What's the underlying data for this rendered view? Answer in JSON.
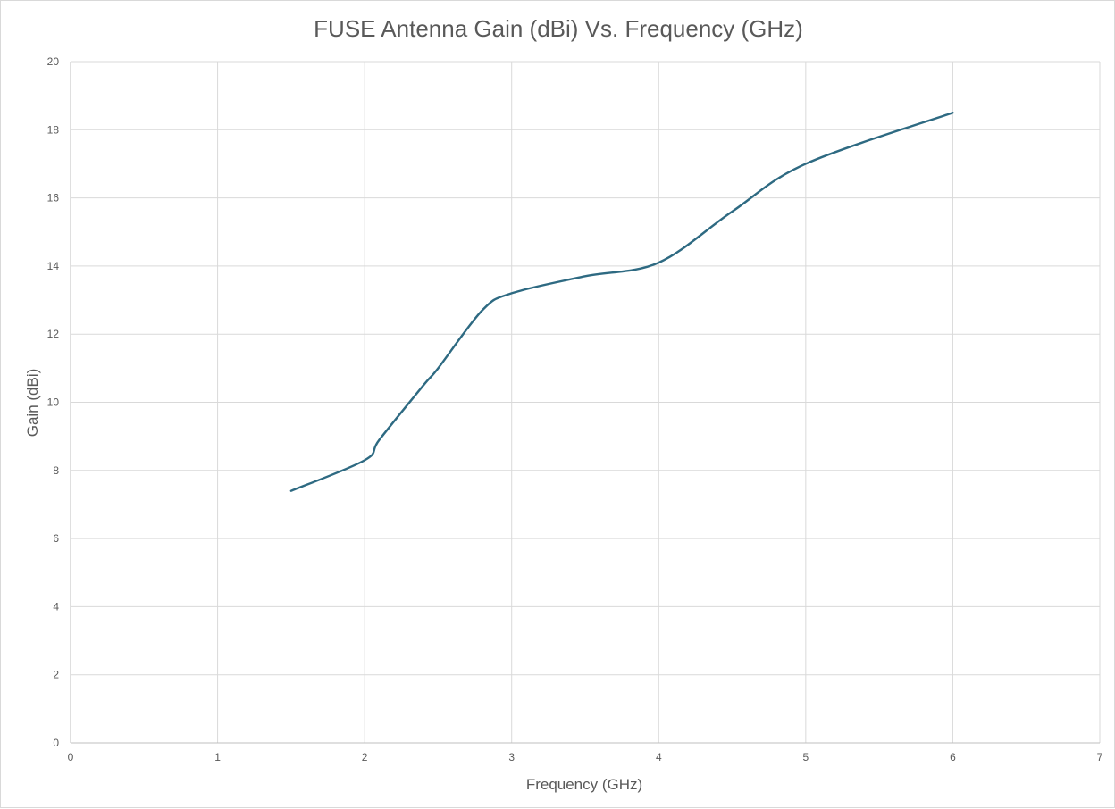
{
  "chart_data": {
    "type": "line",
    "title": "FUSE Antenna Gain (dBi) Vs. Frequency (GHz)",
    "xlabel": "Frequency (GHz)",
    "ylabel": "Gain (dBi)",
    "xlim": [
      0,
      7
    ],
    "ylim": [
      0,
      20
    ],
    "xticks": [
      0,
      1,
      2,
      3,
      4,
      5,
      6,
      7
    ],
    "yticks": [
      0,
      2,
      4,
      6,
      8,
      10,
      12,
      14,
      16,
      18,
      20
    ],
    "grid": true,
    "legend": "none",
    "series": [
      {
        "color": "#2e6a82",
        "smooth": true,
        "x": [
          1.5,
          2.0,
          2.1,
          2.4,
          2.5,
          2.8,
          3.0,
          3.5,
          4.0,
          4.5,
          5.0,
          6.0
        ],
        "y": [
          7.4,
          8.3,
          8.9,
          10.5,
          11.0,
          12.7,
          13.2,
          13.7,
          14.1,
          15.6,
          17.0,
          18.5
        ]
      }
    ]
  }
}
